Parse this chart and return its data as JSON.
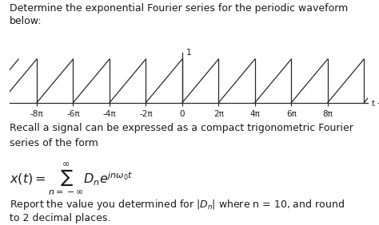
{
  "title_line1": "Determine the exponential Fourier series for the periodic waveform",
  "title_line2": "below:",
  "recall_line1": "Recall a signal can be expressed as a compact trigonometric Fourier",
  "recall_line2": "series of the form",
  "report_line1": "Report the value you determined for |D",
  "report_line1b": "| where n = 10, and round",
  "report_line2": "to 2 decimal places.",
  "bg_color": "#ffffff",
  "text_color": "#1a1a1a",
  "axis_color": "#2a2a2a",
  "waveform_color": "#2a2a2a",
  "x_tick_labels": [
    "-8π",
    "-6π",
    "-4π",
    "-2π",
    "0",
    "2π",
    "4π",
    "6π",
    "8π"
  ],
  "x_ticks": [
    -8,
    -6,
    -4,
    -2,
    0,
    2,
    4,
    6,
    8
  ],
  "y_label_1": "1",
  "x_arrow_label": "t →",
  "font_size_text": 9.0,
  "font_size_tick": 7.5
}
